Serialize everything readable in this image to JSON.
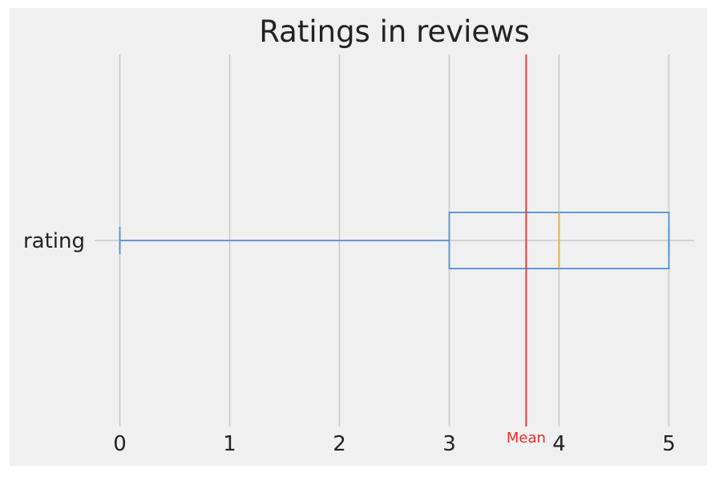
{
  "chart_data": {
    "type": "box",
    "orientation": "horizontal",
    "title": "Ratings in reviews",
    "category_labels": [
      "rating"
    ],
    "xlim": [
      -0.23,
      5.23
    ],
    "x_ticks": [
      0,
      1,
      2,
      3,
      4,
      5
    ],
    "x_tick_labels": [
      "0",
      "1",
      "2",
      "3",
      "4",
      "5"
    ],
    "grid": true,
    "box": {
      "category": "rating",
      "whisker_low": 0,
      "q1": 3,
      "median": 4,
      "q3": 5,
      "whisker_high": 5
    },
    "mean_line": {
      "label": "Mean",
      "value": 3.7
    },
    "colors": {
      "background": "#f0f0f0",
      "grid": "#cbcbcb",
      "box": "#4f91d4",
      "median": "#e5ae38",
      "mean": "#e0302a",
      "text": "#222222"
    }
  }
}
